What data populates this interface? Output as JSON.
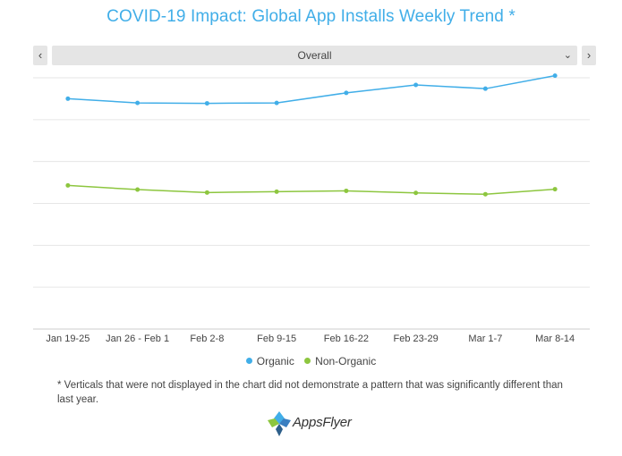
{
  "title": "COVID-19 Impact: Global App Installs Weekly Trend *",
  "selector": {
    "prev_label": "‹",
    "next_label": "›",
    "value": "Overall",
    "chevron_icon": "chevron-down-icon"
  },
  "footnote": "* Verticals that were not displayed in the chart did not demonstrate a pattern that was significantly different than last year.",
  "logo": {
    "text": "AppsFlyer"
  },
  "colors": {
    "organic": "#41aee8",
    "non_organic": "#8dc63f",
    "grid": "#e6e6e6",
    "title": "#41aee8"
  },
  "chart_data": {
    "type": "line",
    "title": "COVID-19 Impact: Global App Installs Weekly Trend *",
    "categories": [
      "Jan 19-25",
      "Jan 26 - Feb 1",
      "Feb 2-8",
      "Feb 9-15",
      "Feb 16-22",
      "Feb 23-29",
      "Mar 1-7",
      "Mar 8-14"
    ],
    "series": [
      {
        "name": "Organic",
        "color": "#41aee8",
        "values": [
          5.5,
          5.4,
          5.39,
          5.4,
          5.64,
          5.83,
          5.74,
          6.05
        ]
      },
      {
        "name": "Non-Organic",
        "color": "#8dc63f",
        "values": [
          3.43,
          3.33,
          3.26,
          3.28,
          3.3,
          3.25,
          3.22,
          3.34
        ]
      }
    ],
    "ylim": [
      0,
      6
    ],
    "gridlines": 7,
    "ytick_labels_visible": false,
    "legend_position": "bottom"
  }
}
